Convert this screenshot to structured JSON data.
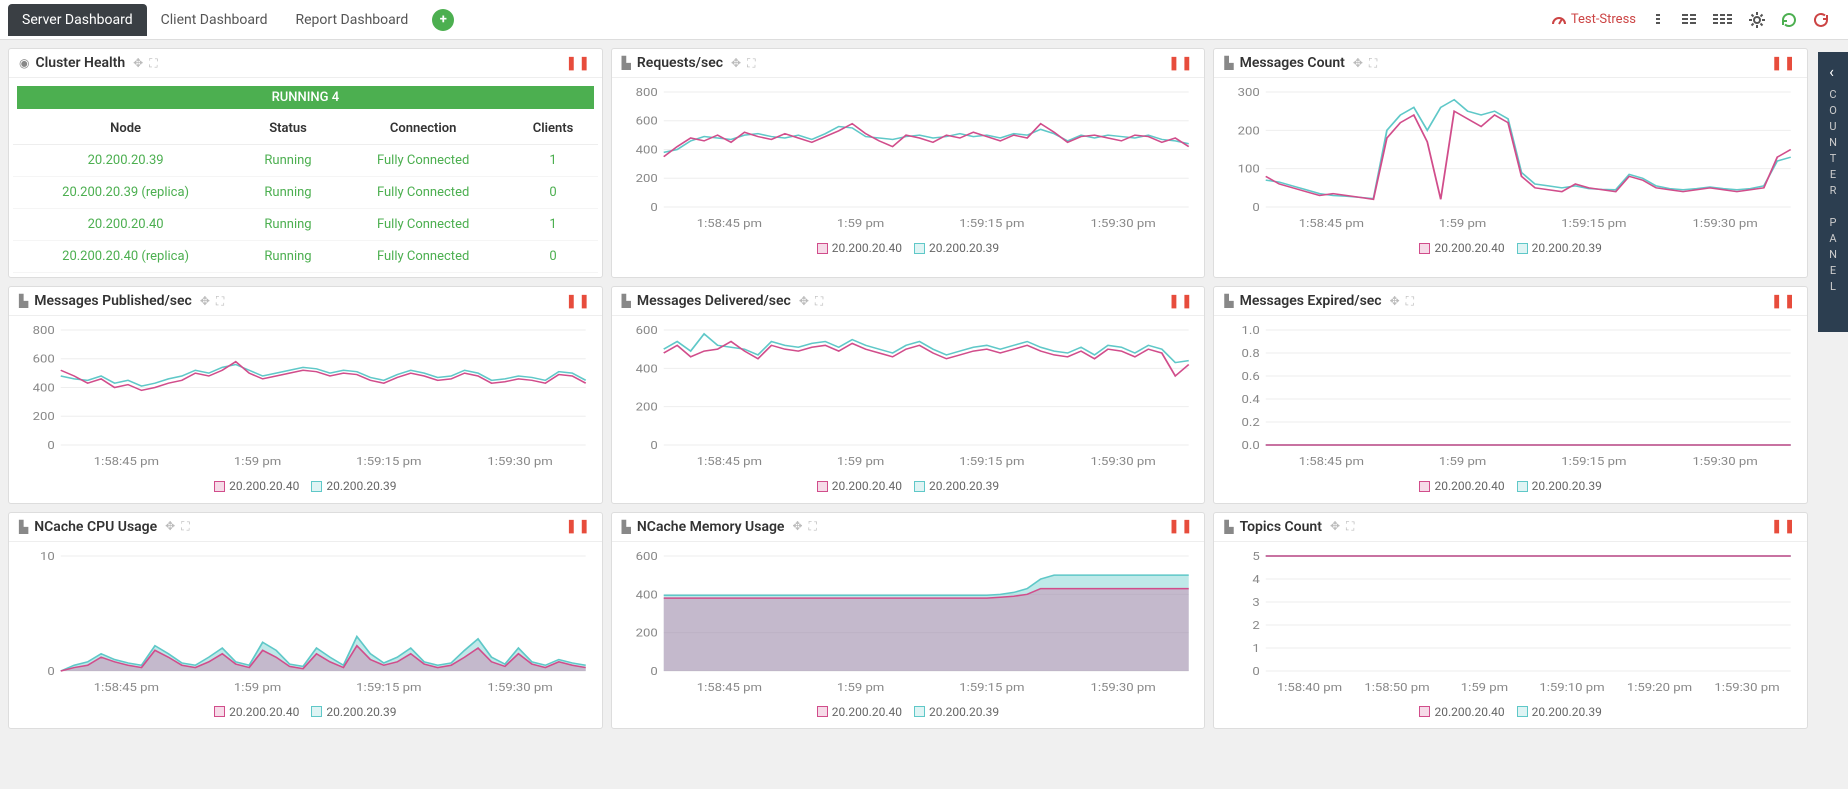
{
  "tabs": {
    "t1": "Server Dashboard",
    "t2": "Client Dashboard",
    "t3": "Report Dashboard"
  },
  "test_link": "Test-Stress",
  "sidebar": "COUNTER PANEL",
  "colors": {
    "s1": "#d14d8b",
    "s2": "#5fc8c8",
    "grid": "#eeeeee",
    "fill1": "#e8c5d9",
    "fill2": "#b8d4e8"
  },
  "xlabels": [
    "1:58:45 pm",
    "1:59 pm",
    "1:59:15 pm",
    "1:59:30 pm"
  ],
  "legend": {
    "s1": "20.200.20.40",
    "s2": "20.200.20.39"
  },
  "cluster": {
    "title": "Cluster Health",
    "running": "RUNNING 4",
    "cols": [
      "Node",
      "Status",
      "Connection",
      "Clients"
    ],
    "rows": [
      [
        "20.200.20.39",
        "Running",
        "Fully Connected",
        "1"
      ],
      [
        "20.200.20.39 (replica)",
        "Running",
        "Fully Connected",
        "0"
      ],
      [
        "20.200.20.40",
        "Running",
        "Fully Connected",
        "1"
      ],
      [
        "20.200.20.40 (replica)",
        "Running",
        "Fully Connected",
        "0"
      ]
    ]
  },
  "charts": {
    "requests": {
      "title": "Requests/sec",
      "ymax": 800,
      "ytick": 200,
      "s1": [
        350,
        420,
        480,
        460,
        500,
        450,
        520,
        490,
        470,
        510,
        480,
        450,
        490,
        530,
        580,
        510,
        460,
        420,
        500,
        480,
        450,
        500,
        480,
        520,
        490,
        460,
        500,
        480,
        580,
        520,
        450,
        490,
        500,
        480,
        460,
        500,
        490,
        450,
        480,
        420
      ],
      "s2": [
        380,
        400,
        460,
        490,
        480,
        470,
        500,
        510,
        490,
        480,
        500,
        470,
        510,
        560,
        550,
        490,
        480,
        470,
        490,
        500,
        480,
        490,
        510,
        490,
        500,
        480,
        510,
        500,
        540,
        510,
        460,
        500,
        480,
        500,
        490,
        480,
        500,
        470,
        460,
        440
      ]
    },
    "msgcount": {
      "title": "Messages Count",
      "ymax": 300,
      "ytick": 100,
      "s1": [
        80,
        60,
        50,
        40,
        30,
        35,
        30,
        25,
        20,
        180,
        220,
        240,
        170,
        20,
        250,
        230,
        210,
        240,
        220,
        80,
        50,
        45,
        40,
        60,
        50,
        45,
        40,
        80,
        70,
        50,
        45,
        40,
        45,
        50,
        45,
        40,
        45,
        50,
        130,
        150
      ],
      "s2": [
        70,
        65,
        55,
        45,
        35,
        30,
        28,
        25,
        22,
        200,
        240,
        260,
        200,
        260,
        280,
        250,
        240,
        250,
        230,
        90,
        60,
        55,
        50,
        55,
        48,
        46,
        45,
        85,
        75,
        55,
        48,
        45,
        48,
        52,
        48,
        45,
        48,
        55,
        120,
        130
      ]
    },
    "msgpub": {
      "title": "Messages Published/sec",
      "ymax": 800,
      "ytick": 200,
      "s1": [
        520,
        480,
        430,
        460,
        400,
        420,
        380,
        400,
        430,
        450,
        500,
        480,
        520,
        580,
        500,
        460,
        480,
        500,
        520,
        510,
        480,
        500,
        490,
        450,
        430,
        470,
        500,
        480,
        450,
        460,
        500,
        480,
        430,
        440,
        460,
        450,
        430,
        490,
        480,
        430
      ],
      "s2": [
        480,
        460,
        450,
        480,
        430,
        450,
        410,
        430,
        460,
        480,
        520,
        500,
        540,
        560,
        520,
        480,
        500,
        520,
        540,
        530,
        500,
        520,
        510,
        470,
        450,
        490,
        520,
        500,
        470,
        480,
        520,
        500,
        450,
        460,
        480,
        470,
        450,
        510,
        500,
        450
      ]
    },
    "msgdel": {
      "title": "Messages Delivered/sec",
      "ymax": 600,
      "ytick": 200,
      "s1": [
        480,
        520,
        460,
        490,
        500,
        540,
        490,
        450,
        520,
        500,
        490,
        510,
        520,
        490,
        530,
        500,
        480,
        460,
        500,
        520,
        480,
        450,
        470,
        490,
        500,
        480,
        500,
        520,
        490,
        470,
        460,
        490,
        450,
        500,
        490,
        460,
        500,
        480,
        360,
        420
      ],
      "s2": [
        500,
        540,
        490,
        580,
        520,
        510,
        500,
        470,
        540,
        520,
        510,
        530,
        540,
        510,
        550,
        520,
        500,
        480,
        520,
        540,
        500,
        470,
        490,
        510,
        520,
        500,
        520,
        540,
        510,
        490,
        480,
        510,
        470,
        520,
        510,
        480,
        520,
        500,
        430,
        440
      ]
    },
    "msgexp": {
      "title": "Messages Expired/sec",
      "ymax": 1.0,
      "ytick": 0.2,
      "s1": [
        0,
        0,
        0,
        0,
        0,
        0,
        0,
        0,
        0,
        0,
        0,
        0,
        0,
        0,
        0,
        0,
        0,
        0,
        0,
        0,
        0,
        0,
        0,
        0,
        0,
        0,
        0,
        0,
        0,
        0,
        0,
        0,
        0,
        0,
        0,
        0,
        0,
        0,
        0,
        0
      ],
      "s2": [
        0,
        0,
        0,
        0,
        0,
        0,
        0,
        0,
        0,
        0,
        0,
        0,
        0,
        0,
        0,
        0,
        0,
        0,
        0,
        0,
        0,
        0,
        0,
        0,
        0,
        0,
        0,
        0,
        0,
        0,
        0,
        0,
        0,
        0,
        0,
        0,
        0,
        0,
        0,
        0
      ]
    },
    "cpu": {
      "title": "NCache CPU Usage",
      "ymax": 10,
      "ytick": 10,
      "area": true,
      "s1": [
        0,
        0.3,
        0.5,
        1.2,
        0.8,
        0.5,
        0.3,
        1.8,
        1.2,
        0.5,
        0.3,
        0.8,
        1.5,
        0.6,
        0.3,
        1.8,
        1.2,
        0.4,
        0.2,
        1.5,
        0.8,
        0.3,
        2.2,
        1.0,
        0.5,
        0.8,
        1.5,
        0.6,
        0.3,
        0.5,
        1.2,
        2.0,
        0.8,
        0.4,
        1.5,
        0.6,
        0.3,
        0.8,
        0.5,
        0.3
      ],
      "s2": [
        0,
        0.5,
        0.8,
        1.5,
        1.0,
        0.7,
        0.5,
        2.2,
        1.5,
        0.7,
        0.5,
        1.2,
        2.0,
        0.8,
        0.5,
        2.5,
        1.8,
        0.6,
        0.4,
        2.0,
        1.2,
        0.5,
        3.0,
        1.5,
        0.7,
        1.2,
        2.0,
        0.8,
        0.5,
        0.7,
        1.8,
        2.8,
        1.2,
        0.6,
        2.0,
        0.8,
        0.5,
        1.0,
        0.7,
        0.5
      ]
    },
    "mem": {
      "title": "NCache Memory Usage",
      "ymax": 600,
      "ytick": 200,
      "area": true,
      "s1": [
        380,
        380,
        380,
        380,
        380,
        380,
        380,
        380,
        380,
        380,
        380,
        380,
        380,
        380,
        380,
        380,
        380,
        380,
        380,
        380,
        380,
        380,
        380,
        380,
        380,
        385,
        390,
        400,
        430,
        430,
        430,
        430,
        430,
        430,
        430,
        430,
        430,
        430,
        430,
        430
      ],
      "s2": [
        395,
        395,
        395,
        395,
        395,
        395,
        395,
        395,
        395,
        395,
        395,
        395,
        395,
        395,
        395,
        395,
        395,
        395,
        395,
        395,
        395,
        395,
        395,
        395,
        395,
        400,
        410,
        430,
        480,
        500,
        500,
        500,
        500,
        500,
        500,
        500,
        500,
        500,
        500,
        500
      ]
    },
    "topics": {
      "title": "Topics Count",
      "ymax": 5,
      "ytick": 1,
      "xlabels": [
        "1:58:40 pm",
        "1:58:50 pm",
        "1:59 pm",
        "1:59:10 pm",
        "1:59:20 pm",
        "1:59:30 pm"
      ],
      "s1": [
        5,
        5,
        5,
        5,
        5,
        5,
        5,
        5,
        5,
        5,
        5,
        5,
        5,
        5,
        5,
        5,
        5,
        5,
        5,
        5,
        5,
        5,
        5,
        5,
        5,
        5,
        5,
        5,
        5,
        5,
        5,
        5,
        5,
        5,
        5,
        5,
        5,
        5,
        5,
        5
      ],
      "s2": [
        5,
        5,
        5,
        5,
        5,
        5,
        5,
        5,
        5,
        5,
        5,
        5,
        5,
        5,
        5,
        5,
        5,
        5,
        5,
        5,
        5,
        5,
        5,
        5,
        5,
        5,
        5,
        5,
        5,
        5,
        5,
        5,
        5,
        5,
        5,
        5,
        5,
        5,
        5,
        5
      ]
    }
  }
}
